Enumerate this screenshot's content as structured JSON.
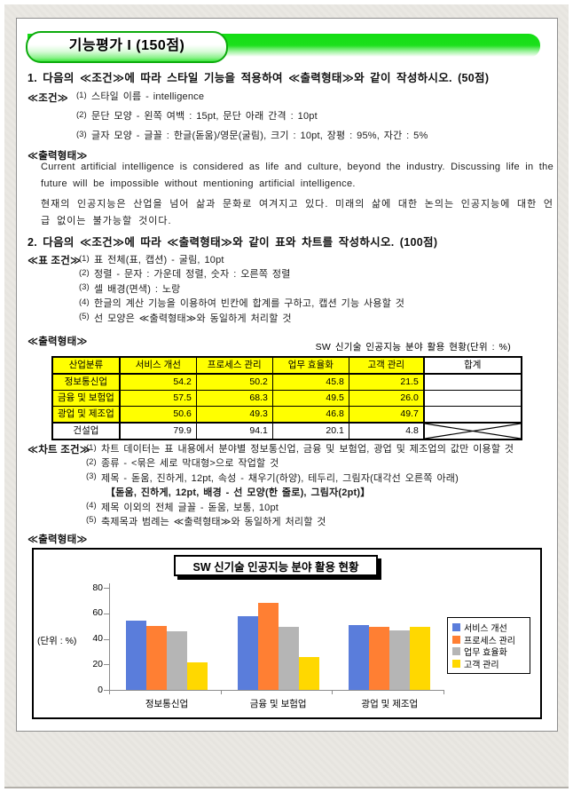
{
  "page": {
    "banner_title": "기능평가 I (150점)",
    "q1": {
      "heading": "1. 다음의 ≪조건≫에 따라 스타일 기능을 적용하여 ≪출력형태≫와 같이 작성하시오. (50점)",
      "cond_label": "≪조건≫",
      "conditions": [
        {
          "num": "(1)",
          "text": "스타일 이름 - intelligence"
        },
        {
          "num": "(2)",
          "text": "문단 모양 - 왼쪽 여백 : 15pt, 문단 아래 간격 : 10pt"
        },
        {
          "num": "(3)",
          "text": "글자 모양 - 글꼴 : 한글(돋움)/영문(굴림), 크기 : 10pt, 장평 : 95%, 자간 : 5%"
        }
      ],
      "output_label": "≪출력형태≫",
      "paragraph_en": "Current artificial intelligence is considered as life and culture, beyond the industry. Discussing life in the future will be impossible without mentioning artificial intelligence.",
      "paragraph_ko": "현재의 인공지능은 산업을 넘어 삶과 문화로 여겨지고 있다. 미래의 삶에 대한 논의는 인공지능에 대한 언급 없이는 불가능할 것이다."
    },
    "q2": {
      "heading": "2. 다음의 ≪조건≫에 따라 ≪출력형태≫와 같이 표와 차트를 작성하시오. (100점)",
      "table_cond_label": "≪표 조건≫",
      "table_conditions": [
        {
          "num": "(1)",
          "text": "표 전체(표, 캡션) - 굴림, 10pt"
        },
        {
          "num": "(2)",
          "text": "정렬 - 문자 : 가운데 정렬, 숫자 : 오른쪽 정렬"
        },
        {
          "num": "(3)",
          "text": "셀 배경(면색) : 노랑"
        },
        {
          "num": "(4)",
          "text": "한글의 계산 기능을 이용하여 빈칸에 합계를 구하고, 캡션 기능 사용할 것"
        },
        {
          "num": "(5)",
          "text": "선 모양은 ≪출력형태≫와 동일하게 처리할 것"
        }
      ],
      "output_label": "≪출력형태≫",
      "table": {
        "caption": "SW 신기술 인공지능 분야 활용 현황(단위 : %)",
        "headers": [
          "산업분류",
          "서비스 개선",
          "프로세스 관리",
          "업무 효율화",
          "고객 관리",
          "합계"
        ],
        "rows": [
          {
            "label": "정보통신업",
            "values": [
              "54.2",
              "50.2",
              "45.8",
              "21.5"
            ],
            "sum": ""
          },
          {
            "label": "금융 및 보험업",
            "values": [
              "57.5",
              "68.3",
              "49.5",
              "26.0"
            ],
            "sum": ""
          },
          {
            "label": "광업 및 제조업",
            "values": [
              "50.6",
              "49.3",
              "46.8",
              "49.7"
            ],
            "sum": ""
          },
          {
            "label": "건설업",
            "values": [
              "79.9",
              "94.1",
              "20.1",
              "4.8"
            ],
            "sum": "crossed"
          }
        ]
      },
      "chart_cond_label": "≪차트 조건≫",
      "chart_conditions": [
        {
          "num": "(1)",
          "text": "차트 데이터는 표 내용에서 분야별 정보통신업, 금융 및 보험업, 광업 및 제조업의 값만 이용할 것"
        },
        {
          "num": "(2)",
          "text": "종류 - <묶은 세로 막대형>으로 작업할 것"
        },
        {
          "num": "(3)",
          "text": "제목 - 돋움, 진하게, 12pt, 속성 - 채우기(하양), 테두리, 그림자(대각선 오른쪽 아래)"
        },
        {
          "num": "",
          "text": "【돋움, 진하게, 12pt, 배경 - 선 모양(한 줄로), 그림자(2pt)】",
          "note": true
        },
        {
          "num": "(4)",
          "text": "제목 이외의 전체 글꼴 - 돋움, 보통, 10pt"
        },
        {
          "num": "(5)",
          "text": "축제목과 범례는 ≪출력형태≫와 동일하게 처리할 것"
        }
      ],
      "chart_output_label": "≪출력형태≫"
    }
  },
  "chart_data": {
    "type": "bar",
    "title": "SW 신기술 인공지능 분야 활용 현황",
    "categories": [
      "정보통신업",
      "금융 및 보험업",
      "광업 및 제조업"
    ],
    "series": [
      {
        "name": "서비스 개선",
        "color": "#5A7DDB",
        "values": [
          54.2,
          57.5,
          50.6
        ]
      },
      {
        "name": "프로세스 관리",
        "color": "#FF7F33",
        "values": [
          50.2,
          68.3,
          49.3
        ]
      },
      {
        "name": "업무 효율화",
        "color": "#B5B5B5",
        "values": [
          45.8,
          49.5,
          46.8
        ]
      },
      {
        "name": "고객 관리",
        "color": "#FFD800",
        "values": [
          21.5,
          26.0,
          49.7
        ]
      }
    ],
    "ylabel": "(단위 : %)",
    "ylim": [
      0,
      80
    ],
    "yticks": [
      0,
      20,
      40,
      60,
      80
    ],
    "grid": false,
    "legend_position": "right"
  }
}
